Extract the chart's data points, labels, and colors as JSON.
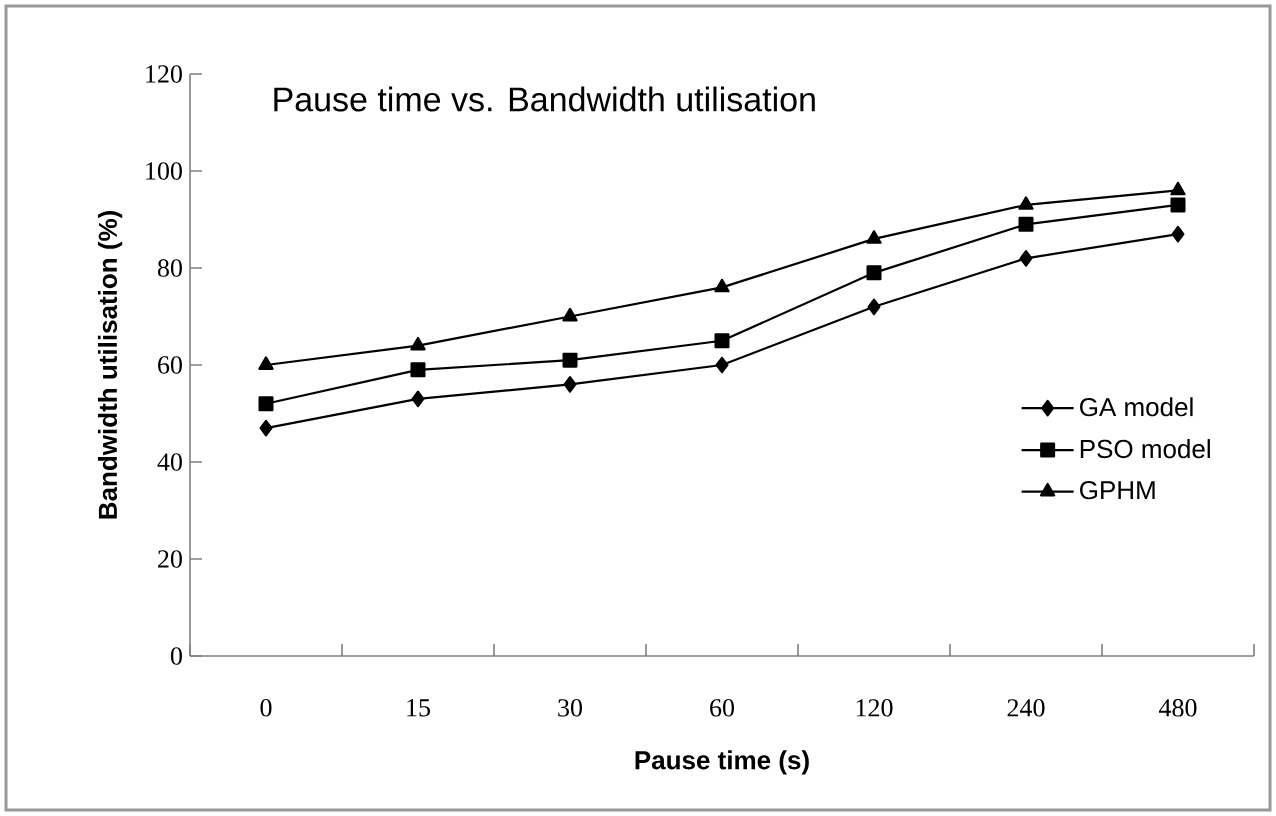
{
  "chart_data": {
    "type": "line",
    "title": "Pause time vs. Bandwidth utilisation",
    "xlabel": "Pause time (s)",
    "ylabel": "Bandwidth utilisation (%)",
    "categories": [
      "0",
      "15",
      "30",
      "60",
      "120",
      "240",
      "480"
    ],
    "series": [
      {
        "name": "GA model",
        "color": "#000000",
        "marker": "diamond",
        "values": [
          47,
          53,
          56,
          60,
          72,
          82,
          87
        ]
      },
      {
        "name": "PSO model",
        "color": "#000000",
        "marker": "square",
        "values": [
          52,
          59,
          61,
          65,
          79,
          89,
          93
        ]
      },
      {
        "name": "GPHM",
        "color": "#000000",
        "marker": "triangle",
        "values": [
          60,
          64,
          70,
          76,
          86,
          93,
          96
        ]
      }
    ],
    "ylim": [
      0,
      120
    ],
    "yticks": [
      0,
      20,
      40,
      60,
      80,
      100,
      120
    ],
    "grid": false,
    "legend": "right"
  }
}
